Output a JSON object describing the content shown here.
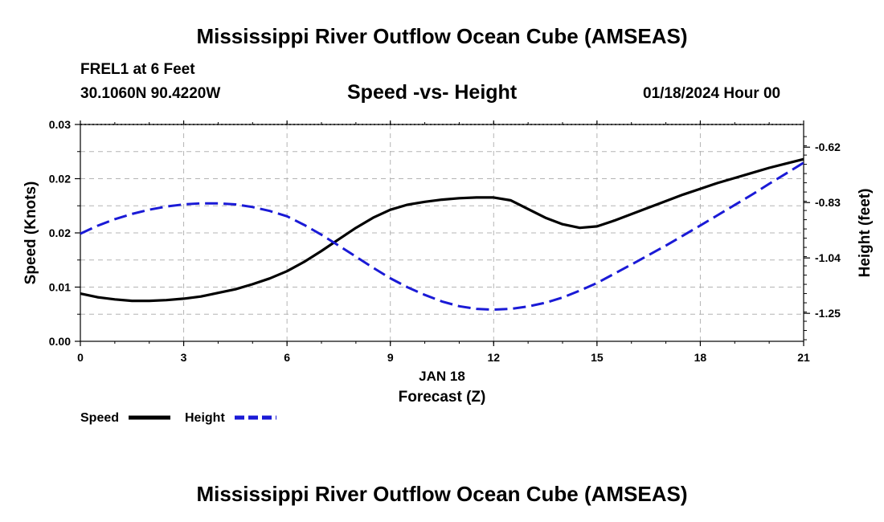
{
  "page": {
    "title": "Mississippi River Outflow Ocean Cube (AMSEAS)",
    "station": "FREL1 at 6 Feet",
    "coords": "30.1060N  90.4220W",
    "subtitle": "Speed -vs- Height",
    "datetime": "01/18/2024 Hour 00",
    "footer_title": "Mississippi River Outflow Ocean Cube (AMSEAS)"
  },
  "colors": {
    "speed": "#000000",
    "height": "#1a1ad6",
    "grid": "#b4b4b4"
  },
  "chart_data": {
    "type": "line",
    "title": "Speed -vs- Height",
    "xlabel": "Forecast (Z)",
    "xlabel_date": "JAN 18",
    "x_ticks": [
      0,
      3,
      6,
      9,
      12,
      15,
      18,
      21
    ],
    "xlim": [
      0,
      21
    ],
    "y_left": {
      "label": "Speed (Knots)",
      "ylim": [
        0,
        0.03
      ],
      "ticks": [
        0,
        0.0075,
        0.015,
        0.0225,
        0.03
      ],
      "tick_labels": [
        "0.00",
        "0.01",
        "0.02",
        "0.02",
        "0.03"
      ]
    },
    "y_right": {
      "label": "Height (feet)",
      "ylim": [
        -1.356,
        -0.534
      ],
      "ticks": [
        -1.25,
        -1.04,
        -0.83,
        -0.62
      ],
      "tick_labels": [
        "-1.25",
        "-1.04",
        "-0.83",
        "-0.62"
      ]
    },
    "series": [
      {
        "name": "Speed",
        "axis": "left",
        "x": [
          0,
          0.5,
          1,
          1.5,
          2,
          2.5,
          3,
          3.5,
          4,
          4.5,
          5,
          5.5,
          6,
          6.5,
          7,
          7.5,
          8,
          8.5,
          9,
          9.5,
          10,
          10.5,
          11,
          11.5,
          12,
          12.5,
          13,
          13.5,
          14,
          14.5,
          15,
          15.5,
          16,
          16.5,
          17,
          17.5,
          18,
          18.5,
          19,
          19.5,
          20,
          20.5,
          21
        ],
        "values": [
          0.0066,
          0.0061,
          0.0058,
          0.0056,
          0.0056,
          0.0057,
          0.0059,
          0.0062,
          0.0067,
          0.0072,
          0.0079,
          0.0087,
          0.0097,
          0.011,
          0.0125,
          0.0141,
          0.0157,
          0.0171,
          0.0182,
          0.0189,
          0.0193,
          0.0196,
          0.0198,
          0.0199,
          0.0199,
          0.0195,
          0.0183,
          0.0171,
          0.0162,
          0.0157,
          0.0159,
          0.0167,
          0.0176,
          0.0185,
          0.0194,
          0.0203,
          0.0211,
          0.0219,
          0.0226,
          0.0233,
          0.024,
          0.0246,
          0.0252
        ]
      },
      {
        "name": "Height",
        "axis": "right",
        "x": [
          0,
          0.5,
          1,
          1.5,
          2,
          2.5,
          3,
          3.5,
          4,
          4.5,
          5,
          5.5,
          6,
          6.5,
          7,
          7.5,
          8,
          8.5,
          9,
          9.5,
          10,
          10.5,
          11,
          11.5,
          12,
          12.5,
          13,
          13.5,
          14,
          14.5,
          15,
          15.5,
          16,
          16.5,
          17,
          17.5,
          18,
          18.5,
          19,
          19.5,
          20,
          20.5,
          21
        ],
        "values": [
          -0.948,
          -0.918,
          -0.893,
          -0.873,
          -0.857,
          -0.845,
          -0.837,
          -0.833,
          -0.833,
          -0.837,
          -0.847,
          -0.862,
          -0.882,
          -0.915,
          -0.952,
          -0.993,
          -1.035,
          -1.077,
          -1.117,
          -1.151,
          -1.18,
          -1.205,
          -1.223,
          -1.233,
          -1.236,
          -1.233,
          -1.224,
          -1.21,
          -1.19,
          -1.164,
          -1.135,
          -1.1,
          -1.065,
          -1.029,
          -0.993,
          -0.955,
          -0.917,
          -0.878,
          -0.839,
          -0.8,
          -0.759,
          -0.719,
          -0.679
        ]
      }
    ],
    "legend": [
      "Speed",
      "Height"
    ],
    "legend_position": "bottom-left",
    "grid": true
  }
}
